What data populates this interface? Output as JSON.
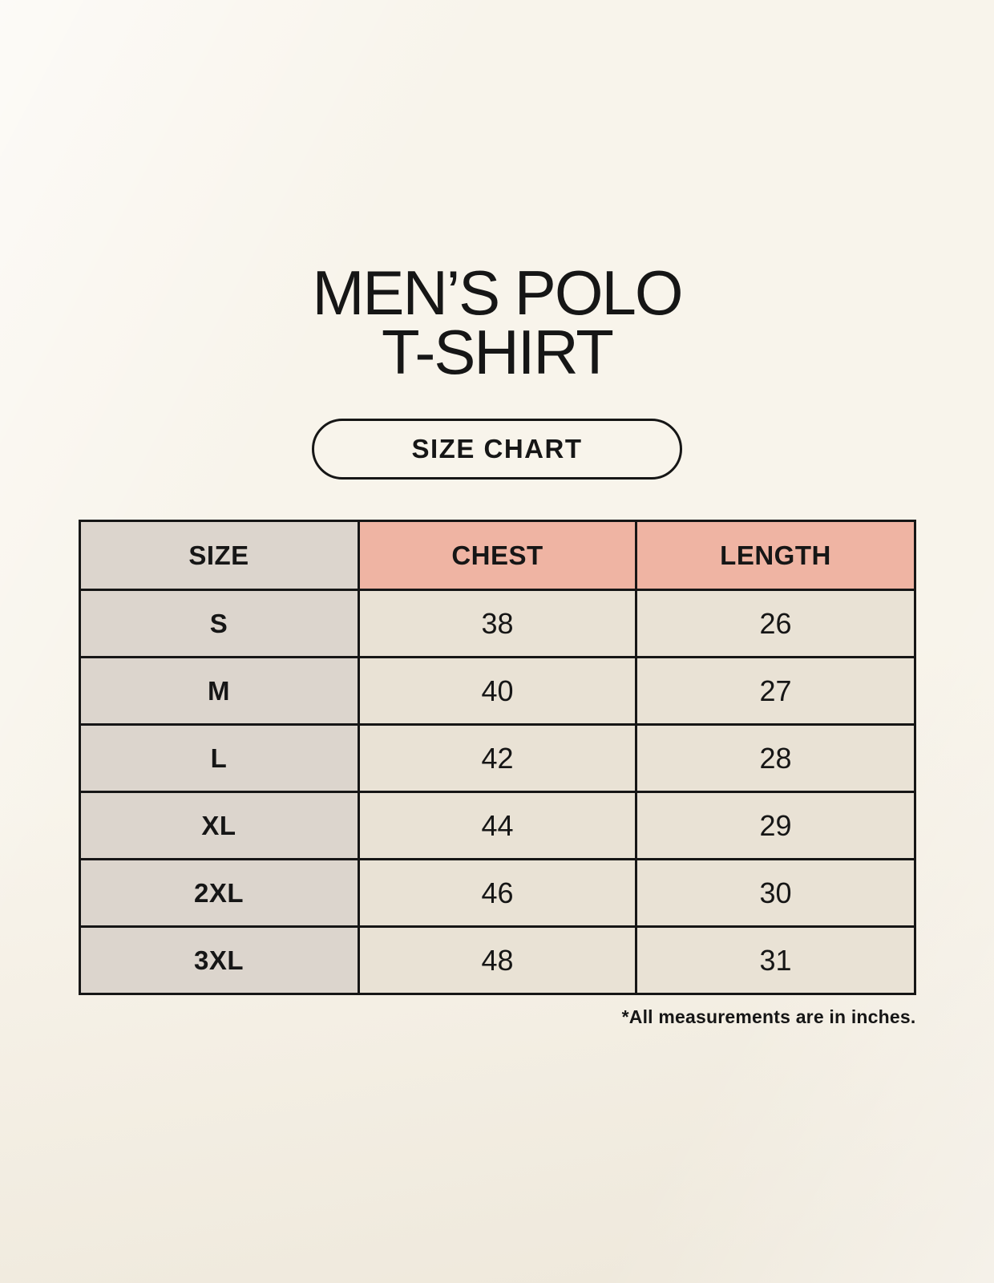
{
  "header": {
    "title_line1": "MEN’S POLO",
    "title_line2": "T-SHIRT",
    "badge_label": "SIZE CHART"
  },
  "chart_data": {
    "type": "table",
    "title": "MEN’S POLO T-SHIRT",
    "columns": [
      "SIZE",
      "CHEST",
      "LENGTH"
    ],
    "rows": [
      [
        "S",
        "38",
        "26"
      ],
      [
        "M",
        "40",
        "27"
      ],
      [
        "L",
        "42",
        "28"
      ],
      [
        "XL",
        "44",
        "29"
      ],
      [
        "2XL",
        "46",
        "30"
      ],
      [
        "3XL",
        "48",
        "31"
      ]
    ],
    "note": "*All measurements are in inches."
  },
  "colors": {
    "background": "#f8f4eb",
    "size_column_bg": "#dcd5cd",
    "accent_header_bg": "#efb4a3",
    "value_cell_bg": "#e9e2d5",
    "border": "#161616",
    "text": "#161616"
  }
}
